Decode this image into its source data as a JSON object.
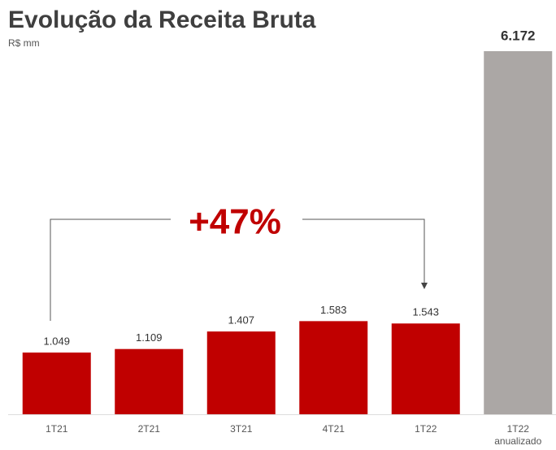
{
  "chart_data": {
    "type": "bar",
    "title": "Evolução da Receita Bruta",
    "subtitle": "R$ mm",
    "categories": [
      "1T21",
      "2T21",
      "3T21",
      "4T21",
      "1T22",
      "1T22 anualizado"
    ],
    "values": [
      1049,
      1109,
      1407,
      1583,
      1543,
      6172
    ],
    "value_labels": [
      "1.049",
      "1.109",
      "1.407",
      "1.583",
      "1.543",
      "6.172"
    ],
    "colors": [
      "#c00000",
      "#c00000",
      "#c00000",
      "#c00000",
      "#c00000",
      "#aba7a5"
    ],
    "annotation": "+47%"
  }
}
